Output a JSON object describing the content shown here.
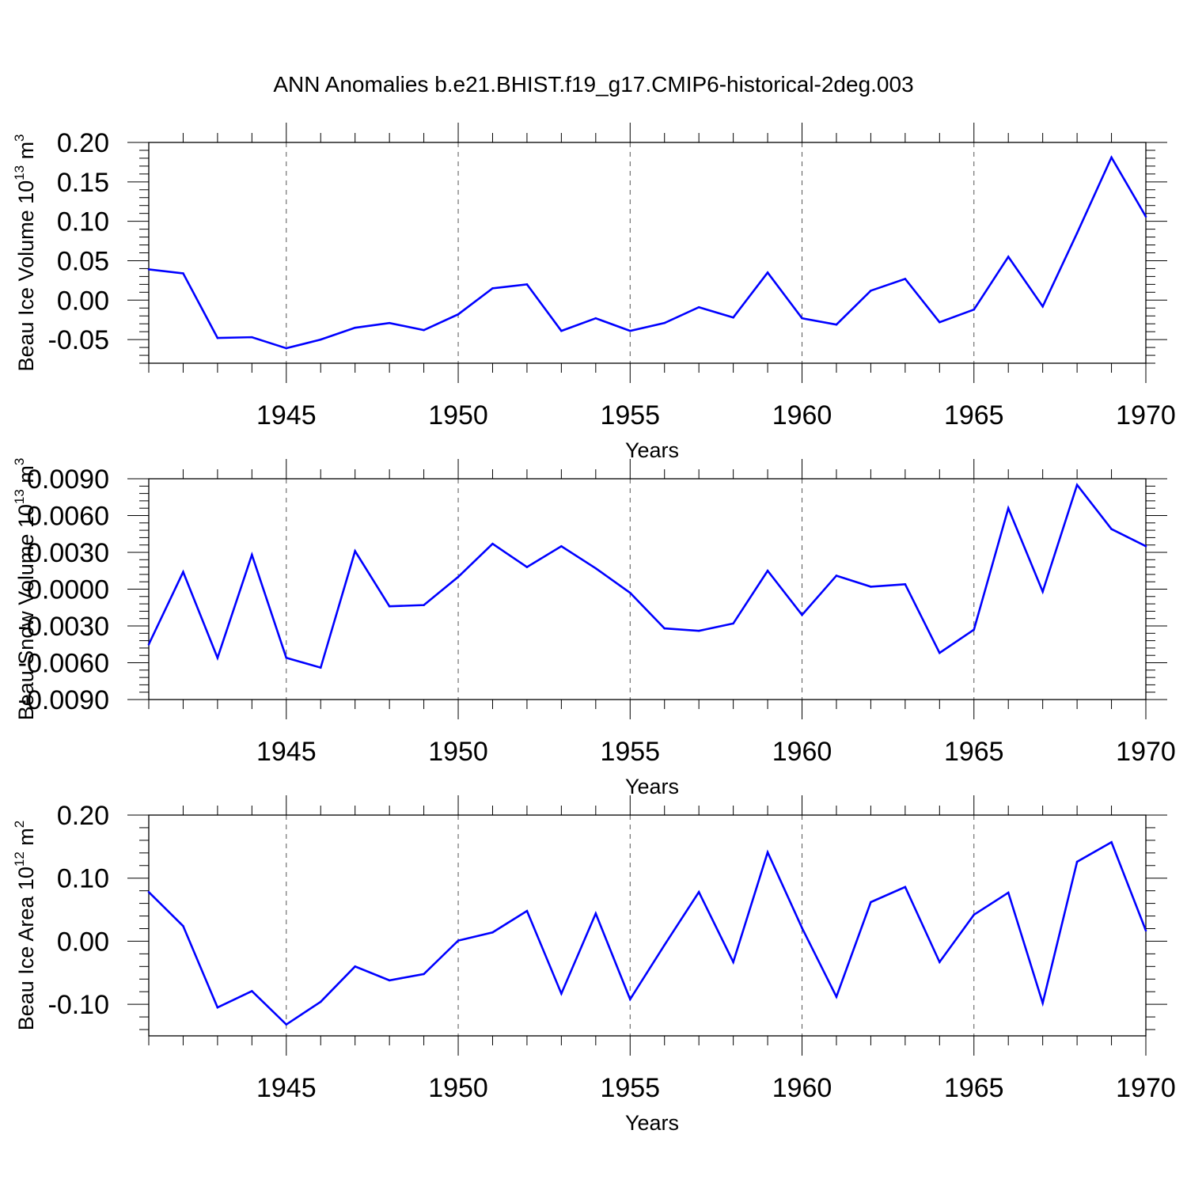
{
  "title": "ANN Anomalies b.e21.BHIST.f19_g17.CMIP6-historical-2deg.003",
  "colors": {
    "series": "#0000ff",
    "axis": "#000000",
    "grid": "#555555"
  },
  "chart_data": [
    {
      "type": "line",
      "title": "ANN Anomalies b.e21.BHIST.f19_g17.CMIP6-historical-2deg.003",
      "xlabel": "Years",
      "ylabel": "Beau Ice Volume 10",
      "ylabel_sup_exp": "13",
      "ylabel_unit": " m",
      "ylabel_unit_sup": "3",
      "xlim": [
        1941,
        1970
      ],
      "ylim": [
        -0.08,
        0.2
      ],
      "yticks": [
        0.2,
        0.15,
        0.1,
        0.05,
        0.0,
        -0.05
      ],
      "ytick_labels": [
        "0.20",
        "0.15",
        "0.10",
        "0.05",
        "0.00",
        "-0.05"
      ],
      "y_minor_step": 0.01,
      "xticks": [
        1945,
        1950,
        1955,
        1960,
        1965,
        1970
      ],
      "xtick_labels": [
        "1945",
        "1950",
        "1955",
        "1960",
        "1965",
        "1970"
      ],
      "grid": "x-dashed",
      "x": [
        1941,
        1942,
        1943,
        1944,
        1945,
        1946,
        1947,
        1948,
        1949,
        1950,
        1951,
        1952,
        1953,
        1954,
        1955,
        1956,
        1957,
        1958,
        1959,
        1960,
        1961,
        1962,
        1963,
        1964,
        1965,
        1966,
        1967,
        1968,
        1969,
        1970
      ],
      "values": [
        0.039,
        0.034,
        -0.048,
        -0.047,
        -0.061,
        -0.05,
        -0.035,
        -0.029,
        -0.038,
        -0.018,
        0.015,
        0.02,
        -0.039,
        -0.023,
        -0.039,
        -0.029,
        -0.009,
        -0.022,
        0.035,
        -0.023,
        -0.031,
        0.012,
        0.027,
        -0.028,
        -0.012,
        0.055,
        -0.008,
        0.085,
        0.181,
        0.106
      ]
    },
    {
      "type": "line",
      "title": "",
      "xlabel": "Years",
      "ylabel": "Beau Snow Volume 10",
      "ylabel_sup_exp": "13",
      "ylabel_unit": " m",
      "ylabel_unit_sup": "3",
      "xlim": [
        1941,
        1970
      ],
      "ylim": [
        -0.009,
        0.009
      ],
      "yticks": [
        0.009,
        0.006,
        0.003,
        0.0,
        -0.003,
        -0.006,
        -0.009
      ],
      "ytick_labels": [
        "0.0090",
        "0.0060",
        "0.0030",
        "0.0000",
        "-0.0030",
        "-0.0060",
        "-0.0090"
      ],
      "y_minor_step": 0.0006,
      "xticks": [
        1945,
        1950,
        1955,
        1960,
        1965,
        1970
      ],
      "xtick_labels": [
        "1945",
        "1950",
        "1955",
        "1960",
        "1965",
        "1970"
      ],
      "grid": "x-dashed",
      "x": [
        1941,
        1942,
        1943,
        1944,
        1945,
        1946,
        1947,
        1948,
        1949,
        1950,
        1951,
        1952,
        1953,
        1954,
        1955,
        1956,
        1957,
        1958,
        1959,
        1960,
        1961,
        1962,
        1963,
        1964,
        1965,
        1966,
        1967,
        1968,
        1969,
        1970
      ],
      "values": [
        -0.0045,
        0.0014,
        -0.0056,
        0.0028,
        -0.0056,
        -0.0064,
        0.0031,
        -0.0014,
        -0.0013,
        0.001,
        0.0037,
        0.0018,
        0.0035,
        0.0017,
        -0.0003,
        -0.0032,
        -0.0034,
        -0.0028,
        0.0015,
        -0.0021,
        0.0011,
        0.0002,
        0.0004,
        -0.0052,
        -0.0033,
        0.0066,
        -0.0002,
        0.0085,
        0.0049,
        0.0035
      ]
    },
    {
      "type": "line",
      "title": "",
      "xlabel": "Years",
      "ylabel": "Beau Ice Area 10",
      "ylabel_sup_exp": "12",
      "ylabel_unit": " m",
      "ylabel_unit_sup": "2",
      "xlim": [
        1941,
        1970
      ],
      "ylim": [
        -0.15,
        0.2
      ],
      "yticks": [
        0.2,
        0.1,
        0.0,
        -0.1
      ],
      "ytick_labels": [
        "0.20",
        "0.10",
        "0.00",
        "-0.10"
      ],
      "y_minor_step": 0.02,
      "xticks": [
        1945,
        1950,
        1955,
        1960,
        1965,
        1970
      ],
      "xtick_labels": [
        "1945",
        "1950",
        "1955",
        "1960",
        "1965",
        "1970"
      ],
      "grid": "x-dashed",
      "x": [
        1941,
        1942,
        1943,
        1944,
        1945,
        1946,
        1947,
        1948,
        1949,
        1950,
        1951,
        1952,
        1953,
        1954,
        1955,
        1956,
        1957,
        1958,
        1959,
        1960,
        1961,
        1962,
        1963,
        1964,
        1965,
        1966,
        1967,
        1968,
        1969,
        1970
      ],
      "values": [
        0.078,
        0.024,
        -0.105,
        -0.079,
        -0.132,
        -0.096,
        -0.04,
        -0.062,
        -0.052,
        0.001,
        0.014,
        0.048,
        -0.083,
        0.044,
        -0.092,
        -0.006,
        0.078,
        -0.033,
        0.141,
        0.021,
        -0.088,
        0.062,
        0.086,
        -0.033,
        0.042,
        0.077,
        -0.098,
        0.126,
        0.157,
        0.017
      ]
    }
  ]
}
